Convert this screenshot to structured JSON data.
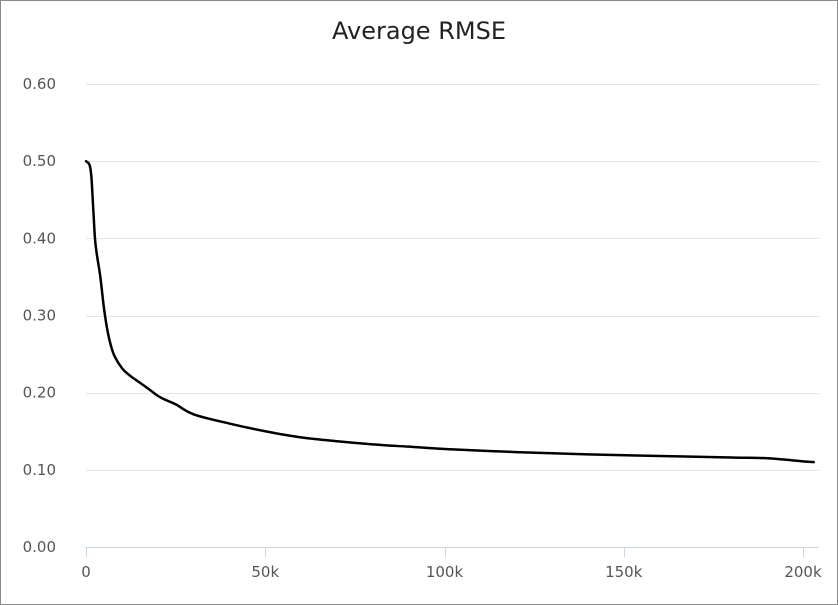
{
  "chart_data": {
    "type": "line",
    "title": "Average RMSE",
    "xlabel": "",
    "ylabel": "",
    "xlim": [
      0,
      205000
    ],
    "ylim": [
      0,
      0.6
    ],
    "grid": true,
    "legend": "none",
    "line_color": "#000000",
    "grid_color": "#e6e6e6",
    "axis_color": "#ccd6eb",
    "x_ticks": [
      {
        "value": 0,
        "label": "0"
      },
      {
        "value": 50000,
        "label": "50k"
      },
      {
        "value": 100000,
        "label": "100k"
      },
      {
        "value": 150000,
        "label": "150k"
      },
      {
        "value": 200000,
        "label": "200k"
      }
    ],
    "y_ticks": [
      {
        "value": 0,
        "label": "0.00"
      },
      {
        "value": 0.1,
        "label": "0.10"
      },
      {
        "value": 0.2,
        "label": "0.20"
      },
      {
        "value": 0.3,
        "label": "0.30"
      },
      {
        "value": 0.4,
        "label": "0.40"
      },
      {
        "value": 0.5,
        "label": "0.50"
      },
      {
        "value": 0.6,
        "label": "0.60"
      }
    ],
    "series": [
      {
        "x": [
          0,
          1000,
          1500,
          2000,
          2500,
          3000,
          4000,
          5000,
          6000,
          7000,
          8000,
          10000,
          12000,
          15000,
          18000,
          20000,
          22000,
          25000,
          30000,
          40000,
          50000,
          60000,
          70000,
          80000,
          90000,
          100000,
          120000,
          140000,
          160000,
          180000,
          190000,
          200000,
          203000
        ],
        "y": [
          0.5,
          0.495,
          0.48,
          0.44,
          0.4,
          0.38,
          0.35,
          0.31,
          0.28,
          0.26,
          0.247,
          0.232,
          0.223,
          0.213,
          0.203,
          0.196,
          0.191,
          0.185,
          0.172,
          0.16,
          0.15,
          0.142,
          0.137,
          0.133,
          0.13,
          0.127,
          0.123,
          0.12,
          0.118,
          0.116,
          0.115,
          0.111,
          0.11
        ]
      }
    ]
  }
}
